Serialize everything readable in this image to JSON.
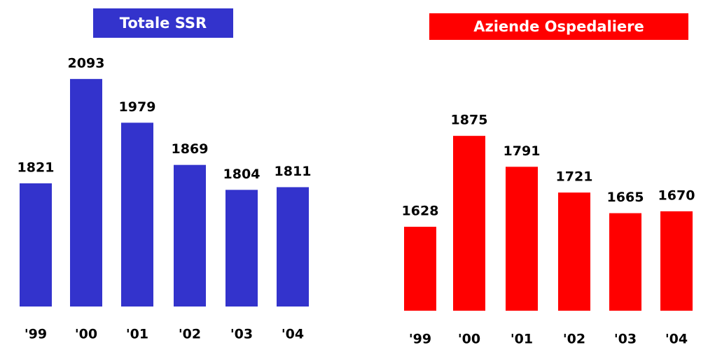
{
  "chart_data": [
    {
      "type": "bar",
      "title": "Totale SSR",
      "categories": [
        "'99",
        "'00",
        "'01",
        "'02",
        "'03",
        "'04"
      ],
      "values": [
        1821,
        2093,
        1979,
        1869,
        1804,
        1811
      ],
      "color": "#3333cc",
      "ylim": [
        1500,
        2100
      ]
    },
    {
      "type": "bar",
      "title": "Aziende Ospedaliere",
      "categories": [
        "'99",
        "'00",
        "'01",
        "'02",
        "'03",
        "'04"
      ],
      "values": [
        1628,
        1875,
        1791,
        1721,
        1665,
        1670
      ],
      "color": "#ff0000",
      "ylim": [
        1400,
        1900
      ]
    }
  ]
}
